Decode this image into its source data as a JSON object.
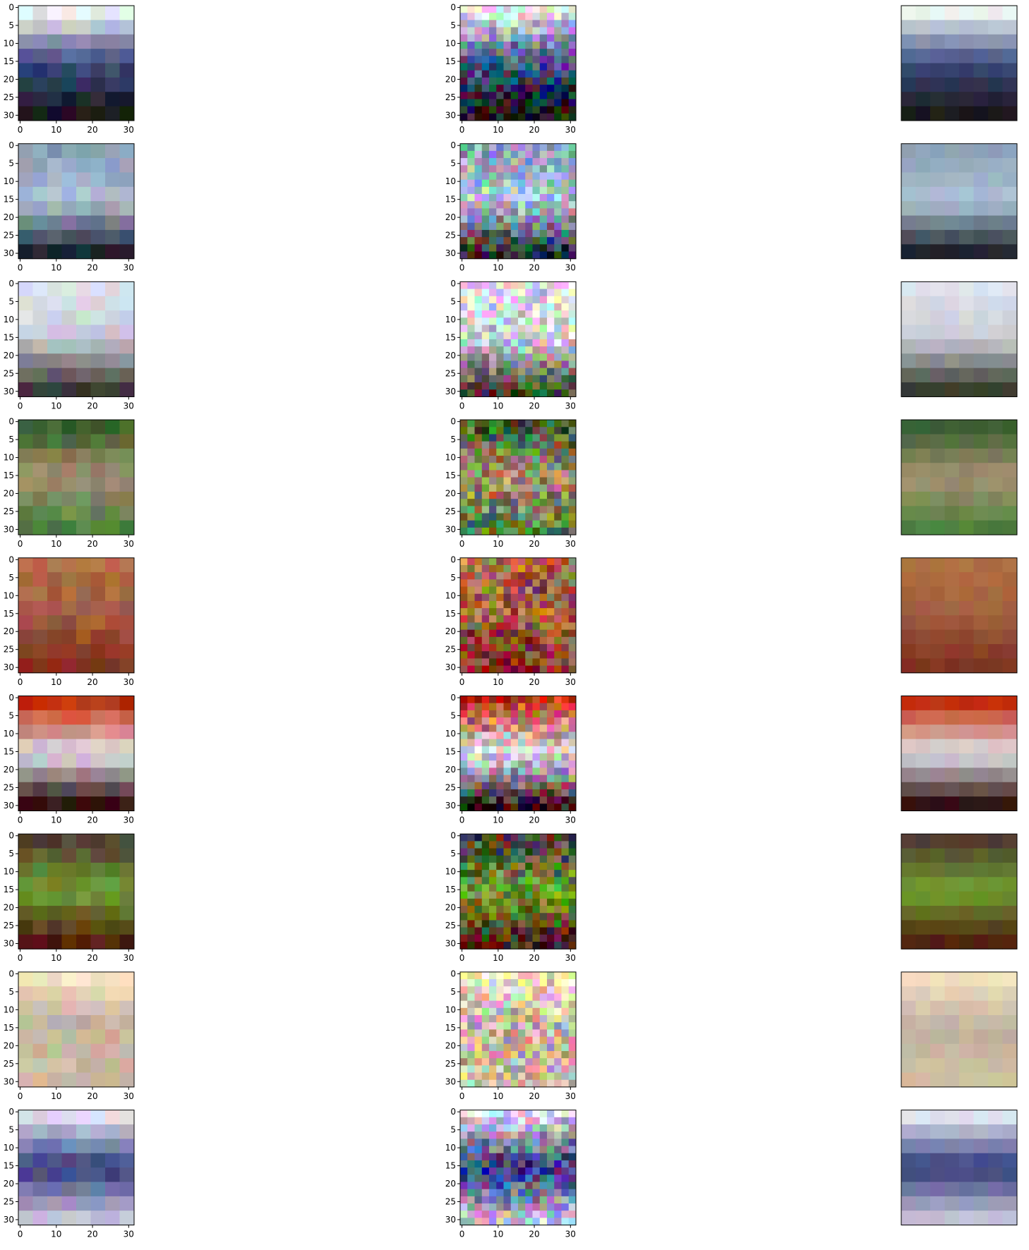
{
  "chart_data": [
    {
      "type": "image",
      "xlim": [
        -0.5,
        31.5
      ],
      "ylim": [
        31.5,
        -0.5
      ],
      "xticks": [
        0,
        10,
        20,
        30
      ],
      "yticks": [
        0,
        5,
        10,
        15,
        20,
        25,
        30
      ]
    },
    {
      "type": "image",
      "xlim": [
        -0.5,
        31.5
      ],
      "ylim": [
        31.5,
        -0.5
      ],
      "xticks": [
        0,
        10,
        20,
        30
      ],
      "yticks": [
        0,
        5,
        10,
        15,
        20,
        25,
        30
      ]
    },
    {
      "type": "image"
    },
    {
      "type": "image",
      "xlim": [
        -0.5,
        31.5
      ],
      "ylim": [
        31.5,
        -0.5
      ],
      "xticks": [
        0,
        10,
        20,
        30
      ],
      "yticks": [
        0,
        5,
        10,
        15,
        20,
        25,
        30
      ]
    },
    {
      "type": "image",
      "xlim": [
        -0.5,
        31.5
      ],
      "ylim": [
        31.5,
        -0.5
      ],
      "xticks": [
        0,
        10,
        20,
        30
      ],
      "yticks": [
        0,
        5,
        10,
        15,
        20,
        25,
        30
      ]
    },
    {
      "type": "image"
    },
    {
      "type": "image",
      "xlim": [
        -0.5,
        31.5
      ],
      "ylim": [
        31.5,
        -0.5
      ],
      "xticks": [
        0,
        10,
        20,
        30
      ],
      "yticks": [
        0,
        5,
        10,
        15,
        20,
        25,
        30
      ]
    },
    {
      "type": "image",
      "xlim": [
        -0.5,
        31.5
      ],
      "ylim": [
        31.5,
        -0.5
      ],
      "xticks": [
        0,
        10,
        20,
        30
      ],
      "yticks": [
        0,
        5,
        10,
        15,
        20,
        25,
        30
      ]
    },
    {
      "type": "image"
    },
    {
      "type": "image",
      "xlim": [
        -0.5,
        31.5
      ],
      "ylim": [
        31.5,
        -0.5
      ],
      "xticks": [
        0,
        10,
        20,
        30
      ],
      "yticks": [
        0,
        5,
        10,
        15,
        20,
        25,
        30
      ]
    },
    {
      "type": "image",
      "xlim": [
        -0.5,
        31.5
      ],
      "ylim": [
        31.5,
        -0.5
      ],
      "xticks": [
        0,
        10,
        20,
        30
      ],
      "yticks": [
        0,
        5,
        10,
        15,
        20,
        25,
        30
      ]
    },
    {
      "type": "image"
    },
    {
      "type": "image",
      "xlim": [
        -0.5,
        31.5
      ],
      "ylim": [
        31.5,
        -0.5
      ],
      "xticks": [
        0,
        10,
        20,
        30
      ],
      "yticks": [
        0,
        5,
        10,
        15,
        20,
        25,
        30
      ]
    },
    {
      "type": "image",
      "xlim": [
        -0.5,
        31.5
      ],
      "ylim": [
        31.5,
        -0.5
      ],
      "xticks": [
        0,
        10,
        20,
        30
      ],
      "yticks": [
        0,
        5,
        10,
        15,
        20,
        25,
        30
      ]
    },
    {
      "type": "image"
    },
    {
      "type": "image",
      "xlim": [
        -0.5,
        31.5
      ],
      "ylim": [
        31.5,
        -0.5
      ],
      "xticks": [
        0,
        10,
        20,
        30
      ],
      "yticks": [
        0,
        5,
        10,
        15,
        20,
        25,
        30
      ]
    },
    {
      "type": "image",
      "xlim": [
        -0.5,
        31.5
      ],
      "ylim": [
        31.5,
        -0.5
      ],
      "xticks": [
        0,
        10,
        20,
        30
      ],
      "yticks": [
        0,
        5,
        10,
        15,
        20,
        25,
        30
      ]
    },
    {
      "type": "image"
    },
    {
      "type": "image",
      "xlim": [
        -0.5,
        31.5
      ],
      "ylim": [
        31.5,
        -0.5
      ],
      "xticks": [
        0,
        10,
        20,
        30
      ],
      "yticks": [
        0,
        5,
        10,
        15,
        20,
        25,
        30
      ]
    },
    {
      "type": "image",
      "xlim": [
        -0.5,
        31.5
      ],
      "ylim": [
        31.5,
        -0.5
      ],
      "xticks": [
        0,
        10,
        20,
        30
      ],
      "yticks": [
        0,
        5,
        10,
        15,
        20,
        25,
        30
      ]
    },
    {
      "type": "image"
    },
    {
      "type": "image",
      "xlim": [
        -0.5,
        31.5
      ],
      "ylim": [
        31.5,
        -0.5
      ],
      "xticks": [
        0,
        10,
        20,
        30
      ],
      "yticks": [
        0,
        5,
        10,
        15,
        20,
        25,
        30
      ]
    },
    {
      "type": "image",
      "xlim": [
        -0.5,
        31.5
      ],
      "ylim": [
        31.5,
        -0.5
      ],
      "xticks": [
        0,
        10,
        20,
        30
      ],
      "yticks": [
        0,
        5,
        10,
        15,
        20,
        25,
        30
      ]
    },
    {
      "type": "image"
    },
    {
      "type": "image",
      "xlim": [
        -0.5,
        31.5
      ],
      "ylim": [
        31.5,
        -0.5
      ],
      "xticks": [
        0,
        10,
        20,
        30
      ],
      "yticks": [
        0,
        5,
        10,
        15,
        20,
        25,
        30
      ]
    },
    {
      "type": "image",
      "xlim": [
        -0.5,
        31.5
      ],
      "ylim": [
        31.5,
        -0.5
      ],
      "xticks": [
        0,
        10,
        20,
        30
      ],
      "yticks": [
        0,
        5,
        10,
        15,
        20,
        25,
        30
      ]
    },
    {
      "type": "image"
    }
  ]
}
